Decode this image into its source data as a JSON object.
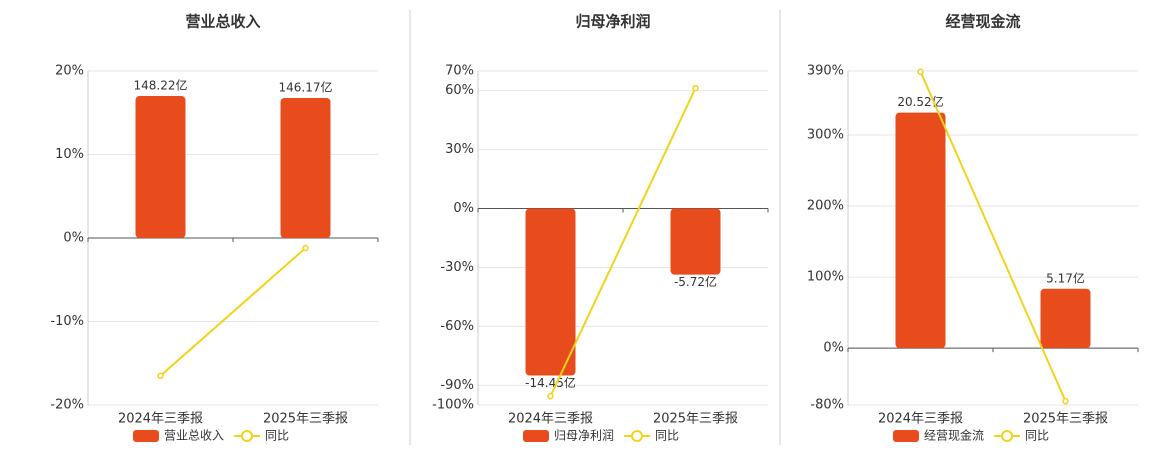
{
  "chart_data": [
    {
      "type": "combo",
      "title": "营业总收入",
      "categories": [
        "2024年三季报",
        "2025年三季报"
      ],
      "series": [
        {
          "name": "营业总收入",
          "color": "#e84c1c",
          "values": [
            148.22,
            146.17
          ],
          "value_labels": [
            "148.22亿",
            "146.17亿"
          ]
        },
        {
          "name": "同比",
          "color": "#f2d31b",
          "values": [
            -16.5,
            -1.2
          ]
        }
      ],
      "ylim": [
        -20,
        20
      ],
      "yticks": [
        {
          "value": 20,
          "label": "20%"
        },
        {
          "value": 10,
          "label": "10%"
        },
        {
          "value": 0,
          "label": "0%"
        },
        {
          "value": -10,
          "label": "-10%"
        },
        {
          "value": -20,
          "label": "-20%"
        }
      ],
      "grid": true
    },
    {
      "type": "combo",
      "title": "归母净利润",
      "categories": [
        "2024年三季报",
        "2025年三季报"
      ],
      "series": [
        {
          "name": "归母净利润",
          "color": "#e84c1c",
          "values": [
            -14.45,
            -5.72
          ],
          "value_labels": [
            "-14.45亿",
            "-5.72亿"
          ]
        },
        {
          "name": "同比",
          "color": "#f2d31b",
          "values": [
            -95.5,
            61.3
          ]
        }
      ],
      "ylim": [
        -100,
        70
      ],
      "yticks": [
        {
          "value": 70,
          "label": "70%"
        },
        {
          "value": 60,
          "label": "60%"
        },
        {
          "value": 30,
          "label": "30%"
        },
        {
          "value": 0,
          "label": "0%"
        },
        {
          "value": -30,
          "label": "-30%"
        },
        {
          "value": -60,
          "label": "-60%"
        },
        {
          "value": -90,
          "label": "-90%"
        },
        {
          "value": -100,
          "label": "-100%"
        }
      ],
      "grid": true
    },
    {
      "type": "combo",
      "title": "经营现金流",
      "categories": [
        "2024年三季报",
        "2025年三季报"
      ],
      "series": [
        {
          "name": "经营现金流",
          "color": "#e84c1c",
          "values": [
            20.52,
            5.17
          ],
          "value_labels": [
            "20.52亿",
            "5.17亿"
          ]
        },
        {
          "name": "同比",
          "color": "#f2d31b",
          "values": [
            389,
            -74.6
          ]
        }
      ],
      "ylim": [
        -80,
        390
      ],
      "yticks": [
        {
          "value": 390,
          "label": "390%"
        },
        {
          "value": 300,
          "label": "300%"
        },
        {
          "value": 200,
          "label": "200%"
        },
        {
          "value": 100,
          "label": "100%"
        },
        {
          "value": 0,
          "label": "0%"
        },
        {
          "value": -80,
          "label": "-80%"
        }
      ],
      "grid": true
    }
  ]
}
